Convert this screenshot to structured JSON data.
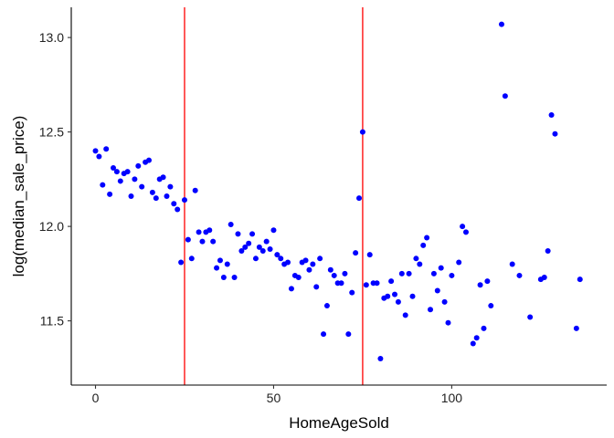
{
  "chart_data": {
    "type": "scatter",
    "xlabel": "HomeAgeSold",
    "ylabel": "log(median_sale_price)",
    "xlim": [
      -6.8,
      143.5
    ],
    "ylim": [
      11.16,
      13.16
    ],
    "x_ticks": [
      0,
      50,
      100
    ],
    "x_tick_labels": [
      "0",
      "50",
      "100"
    ],
    "y_ticks": [
      11.5,
      12.0,
      12.5,
      13.0
    ],
    "y_tick_labels": [
      "11.5",
      "12.0",
      "12.5",
      "13.0"
    ],
    "grid": false,
    "legend": "none",
    "point_color": "#0000ff",
    "vline_color": "#ff0000",
    "vlines": [
      25,
      75
    ],
    "points": [
      [
        0,
        12.4
      ],
      [
        1,
        12.37
      ],
      [
        2,
        12.22
      ],
      [
        3,
        12.41
      ],
      [
        4,
        12.17
      ],
      [
        5,
        12.31
      ],
      [
        6,
        12.29
      ],
      [
        7,
        12.24
      ],
      [
        8,
        12.28
      ],
      [
        9,
        12.29
      ],
      [
        10,
        12.16
      ],
      [
        11,
        12.25
      ],
      [
        12,
        12.32
      ],
      [
        13,
        12.21
      ],
      [
        14,
        12.34
      ],
      [
        15,
        12.35
      ],
      [
        16,
        12.18
      ],
      [
        17,
        12.15
      ],
      [
        18,
        12.25
      ],
      [
        19,
        12.26
      ],
      [
        20,
        12.16
      ],
      [
        21,
        12.21
      ],
      [
        22,
        12.12
      ],
      [
        23,
        12.09
      ],
      [
        24,
        11.81
      ],
      [
        25,
        12.14
      ],
      [
        26,
        11.93
      ],
      [
        27,
        11.83
      ],
      [
        28,
        12.19
      ],
      [
        29,
        11.97
      ],
      [
        30,
        11.92
      ],
      [
        31,
        11.97
      ],
      [
        32,
        11.98
      ],
      [
        33,
        11.92
      ],
      [
        34,
        11.78
      ],
      [
        35,
        11.82
      ],
      [
        36,
        11.73
      ],
      [
        37,
        11.8
      ],
      [
        38,
        12.01
      ],
      [
        39,
        11.73
      ],
      [
        40,
        11.96
      ],
      [
        41,
        11.87
      ],
      [
        42,
        11.89
      ],
      [
        43,
        11.91
      ],
      [
        44,
        11.96
      ],
      [
        45,
        11.83
      ],
      [
        46,
        11.89
      ],
      [
        47,
        11.87
      ],
      [
        48,
        11.92
      ],
      [
        49,
        11.88
      ],
      [
        50,
        11.98
      ],
      [
        51,
        11.85
      ],
      [
        52,
        11.83
      ],
      [
        53,
        11.8
      ],
      [
        54,
        11.81
      ],
      [
        55,
        11.67
      ],
      [
        56,
        11.74
      ],
      [
        57,
        11.73
      ],
      [
        58,
        11.81
      ],
      [
        59,
        11.82
      ],
      [
        60,
        11.77
      ],
      [
        61,
        11.8
      ],
      [
        62,
        11.68
      ],
      [
        63,
        11.83
      ],
      [
        64,
        11.43
      ],
      [
        65,
        11.58
      ],
      [
        66,
        11.77
      ],
      [
        67,
        11.74
      ],
      [
        68,
        11.7
      ],
      [
        69,
        11.7
      ],
      [
        70,
        11.75
      ],
      [
        71,
        11.43
      ],
      [
        72,
        11.65
      ],
      [
        73,
        11.86
      ],
      [
        74,
        12.15
      ],
      [
        75,
        12.5
      ],
      [
        76,
        11.69
      ],
      [
        77,
        11.85
      ],
      [
        78,
        11.7
      ],
      [
        79,
        11.7
      ],
      [
        80,
        11.3
      ],
      [
        81,
        11.62
      ],
      [
        82,
        11.63
      ],
      [
        83,
        11.71
      ],
      [
        84,
        11.64
      ],
      [
        85,
        11.6
      ],
      [
        86,
        11.75
      ],
      [
        87,
        11.53
      ],
      [
        88,
        11.75
      ],
      [
        89,
        11.63
      ],
      [
        90,
        11.83
      ],
      [
        91,
        11.8
      ],
      [
        92,
        11.9
      ],
      [
        93,
        11.94
      ],
      [
        94,
        11.56
      ],
      [
        95,
        11.75
      ],
      [
        96,
        11.66
      ],
      [
        97,
        11.78
      ],
      [
        98,
        11.6
      ],
      [
        99,
        11.49
      ],
      [
        100,
        11.74
      ],
      [
        102,
        11.81
      ],
      [
        103,
        12.0
      ],
      [
        104,
        11.97
      ],
      [
        106,
        11.38
      ],
      [
        107,
        11.41
      ],
      [
        108,
        11.69
      ],
      [
        109,
        11.46
      ],
      [
        110,
        11.71
      ],
      [
        111,
        11.58
      ],
      [
        114,
        13.07
      ],
      [
        115,
        12.69
      ],
      [
        117,
        11.8
      ],
      [
        119,
        11.74
      ],
      [
        122,
        11.52
      ],
      [
        125,
        11.72
      ],
      [
        126,
        11.73
      ],
      [
        127,
        11.87
      ],
      [
        128,
        12.59
      ],
      [
        129,
        12.49
      ],
      [
        135,
        11.46
      ],
      [
        136,
        11.72
      ]
    ]
  }
}
